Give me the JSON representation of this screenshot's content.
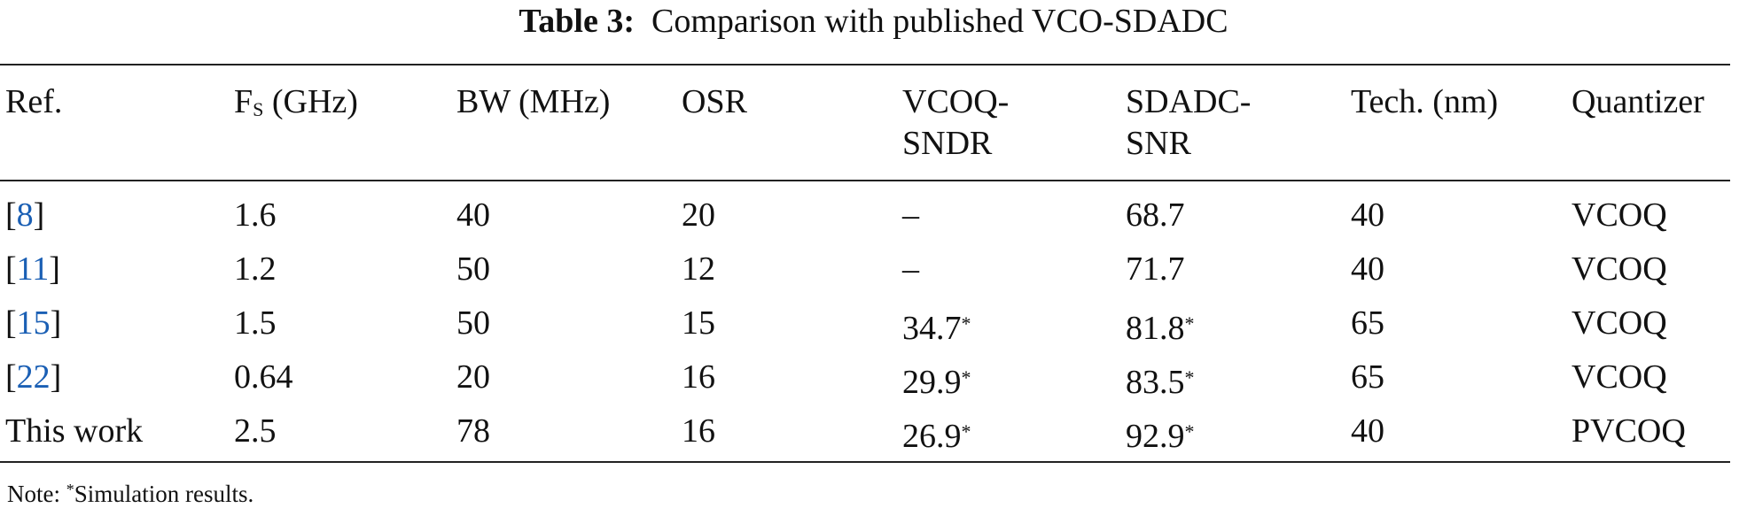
{
  "table": {
    "title": {
      "label": "Table 3:",
      "text": "Comparison with published VCO-SDADC"
    },
    "headers": [
      [
        "Ref."
      ],
      [
        {
          "main": "F",
          "sub": "S",
          "rest": " (GHz)"
        }
      ],
      [
        "BW (MHz)"
      ],
      [
        "OSR"
      ],
      [
        "VCOQ-",
        "SNDR"
      ],
      [
        "SDADC-",
        "SNR"
      ],
      [
        "Tech. (nm)"
      ],
      [
        "Quantizer"
      ]
    ],
    "rows": [
      [
        {
          "pre": "[",
          "link": "8",
          "post": "]"
        },
        "1.6",
        "40",
        "20",
        "–",
        "68.7",
        "40",
        "VCOQ"
      ],
      [
        {
          "pre": "[",
          "link": "11",
          "post": "]"
        },
        "1.2",
        "50",
        "12",
        "–",
        "71.7",
        "40",
        "VCOQ"
      ],
      [
        {
          "pre": "[",
          "link": "15",
          "post": "]"
        },
        "1.5",
        "50",
        "15",
        {
          "text": "34.7",
          "mark": "*"
        },
        {
          "text": "81.8",
          "mark": "*"
        },
        "65",
        "VCOQ"
      ],
      [
        {
          "pre": "[",
          "link": "22",
          "post": "]"
        },
        "0.64",
        "20",
        "16",
        {
          "text": "29.9",
          "mark": "*"
        },
        {
          "text": "83.5",
          "mark": "*"
        },
        "65",
        "VCOQ"
      ],
      [
        "This work",
        "2.5",
        "78",
        "16",
        {
          "text": "26.9",
          "mark": "*"
        },
        {
          "text": "92.9",
          "mark": "*"
        },
        "40",
        "PVCOQ"
      ]
    ],
    "note": {
      "label": "Note: ",
      "mark": "*",
      "text": "Simulation results."
    }
  }
}
